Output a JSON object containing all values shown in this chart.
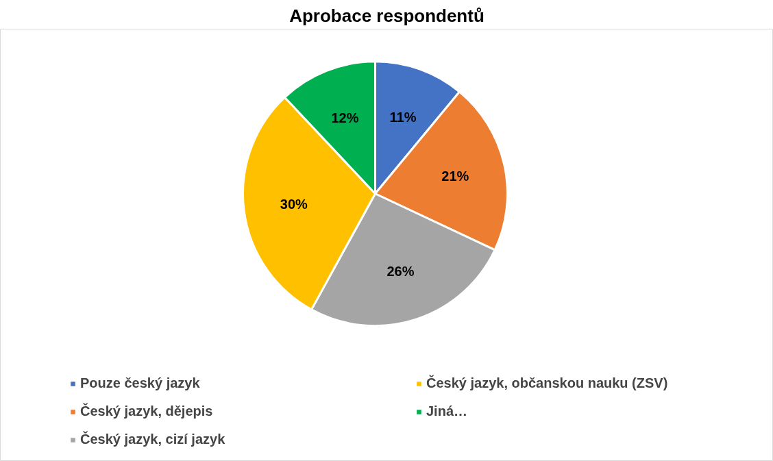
{
  "chart_data": {
    "type": "pie",
    "title": "Aprobace respondentů",
    "categories": [
      "Pouze český jazyk",
      "Český jazyk, dějepis",
      "Český jazyk, cizí jazyk",
      "Český jazyk, občanskou nauku (ZSV)",
      "Jiná…"
    ],
    "values": [
      11,
      21,
      26,
      30,
      12
    ],
    "colors": [
      "#4472c4",
      "#ed7d31",
      "#a5a5a5",
      "#ffc000",
      "#00b050"
    ],
    "value_labels": [
      "11%",
      "21%",
      "26%",
      "30%",
      "12%"
    ],
    "legend": "bottom"
  }
}
